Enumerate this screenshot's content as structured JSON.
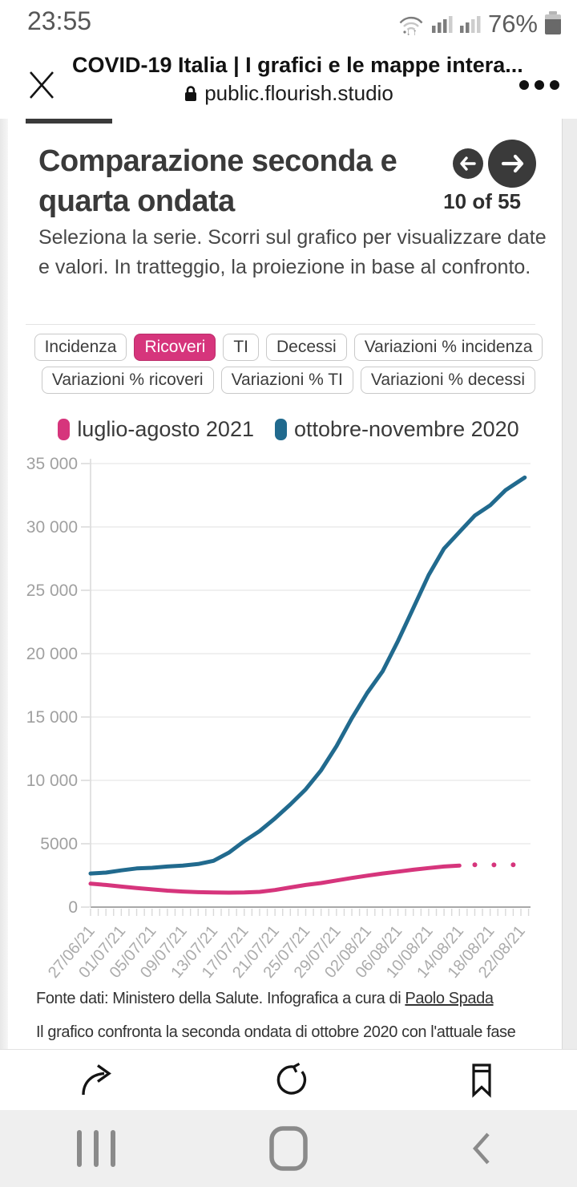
{
  "status_bar": {
    "time": "23:55",
    "battery": "76%"
  },
  "browser": {
    "page_title": "COVID-19 Italia | I grafici e le mappe intera...",
    "url": "public.flourish.studio"
  },
  "story": {
    "title": "Comparazione seconda e quarta ondata",
    "pager": "10 of 55",
    "description": "Seleziona la serie. Scorri sul grafico per visualizzare date e valori. In tratteggio, la proiezione in base al confronto."
  },
  "filters": {
    "rows": [
      [
        {
          "label": "Incidenza",
          "active": false
        },
        {
          "label": "Ricoveri",
          "active": true
        },
        {
          "label": "TI",
          "active": false
        },
        {
          "label": "Decessi",
          "active": false
        },
        {
          "label": "Variazioni % incidenza",
          "active": false
        }
      ],
      [
        {
          "label": "Variazioni % ricoveri",
          "active": false
        },
        {
          "label": "Variazioni % TI",
          "active": false
        },
        {
          "label": "Variazioni % decessi",
          "active": false
        }
      ]
    ]
  },
  "legend": {
    "items": [
      {
        "label": "luglio-agosto 2021",
        "color": "#d6357c"
      },
      {
        "label": "ottobre-novembre 2020",
        "color": "#216a8e"
      }
    ]
  },
  "chart_data": {
    "type": "line",
    "title": "Comparazione seconda e quarta ondata — Ricoveri",
    "ylim": [
      0,
      35000
    ],
    "grid": "horizontal",
    "legend_position": "top",
    "x_total_days": 57,
    "x_tick_label_days": [
      0,
      4,
      8,
      12,
      16,
      20,
      24,
      28,
      32,
      36,
      40,
      44,
      48,
      52,
      56
    ],
    "x_tick_labels": [
      "27/06/21",
      "01/07/21",
      "05/07/21",
      "09/07/21",
      "13/07/21",
      "17/07/21",
      "21/07/21",
      "25/07/21",
      "29/07/21",
      "02/08/21",
      "06/08/21",
      "10/08/21",
      "14/08/21",
      "18/08/21",
      "22/08/21"
    ],
    "y_ticks": {
      "values": [
        0,
        5000,
        10000,
        15000,
        20000,
        25000,
        30000,
        35000
      ],
      "labels": [
        "0",
        "5000",
        "10 000",
        "15 000",
        "20 000",
        "25 000",
        "30 000",
        "35 000"
      ]
    },
    "series": [
      {
        "name": "luglio-agosto 2021",
        "color": "#d6357c",
        "x": [
          0,
          2,
          4,
          6,
          8,
          10,
          12,
          14,
          16,
          18,
          20,
          22,
          24,
          26,
          28,
          30,
          32,
          34,
          36,
          38,
          40,
          42,
          44,
          46,
          48
        ],
        "values": [
          1850,
          1750,
          1620,
          1500,
          1400,
          1300,
          1230,
          1180,
          1150,
          1140,
          1150,
          1200,
          1350,
          1550,
          1750,
          1900,
          2100,
          2300,
          2480,
          2650,
          2800,
          2950,
          3080,
          3200,
          3280
        ],
        "projection_dots": {
          "x": [
            50,
            52.5,
            55
          ],
          "values": [
            3340,
            3330,
            3340
          ]
        }
      },
      {
        "name": "ottobre-novembre 2020",
        "color": "#216a8e",
        "x": [
          0,
          2,
          4,
          6,
          8,
          10,
          12,
          14,
          16,
          18,
          20,
          22,
          24,
          26,
          28,
          30,
          32,
          34,
          36,
          38,
          40,
          42,
          44,
          46,
          48,
          50,
          52,
          54,
          56,
          56.5
        ],
        "values": [
          2650,
          2720,
          2900,
          3050,
          3100,
          3200,
          3280,
          3400,
          3650,
          4300,
          5200,
          6000,
          7000,
          8100,
          9300,
          10800,
          12700,
          14900,
          16900,
          18600,
          21000,
          23600,
          26200,
          28300,
          29600,
          30900,
          31700,
          32900,
          33700,
          33900
        ]
      }
    ]
  },
  "footer": {
    "source_prefix": "Fonte dati: Ministero della Salute. Infografica a cura di ",
    "source_link": "Paolo Spada",
    "next_paragraph": "Il grafico confronta la seconda ondata di ottobre 2020 con l'attuale fase"
  },
  "colors": {
    "accent_pink": "#d6357c",
    "accent_blue": "#216a8e",
    "ui_dark": "#3a3a3a"
  }
}
